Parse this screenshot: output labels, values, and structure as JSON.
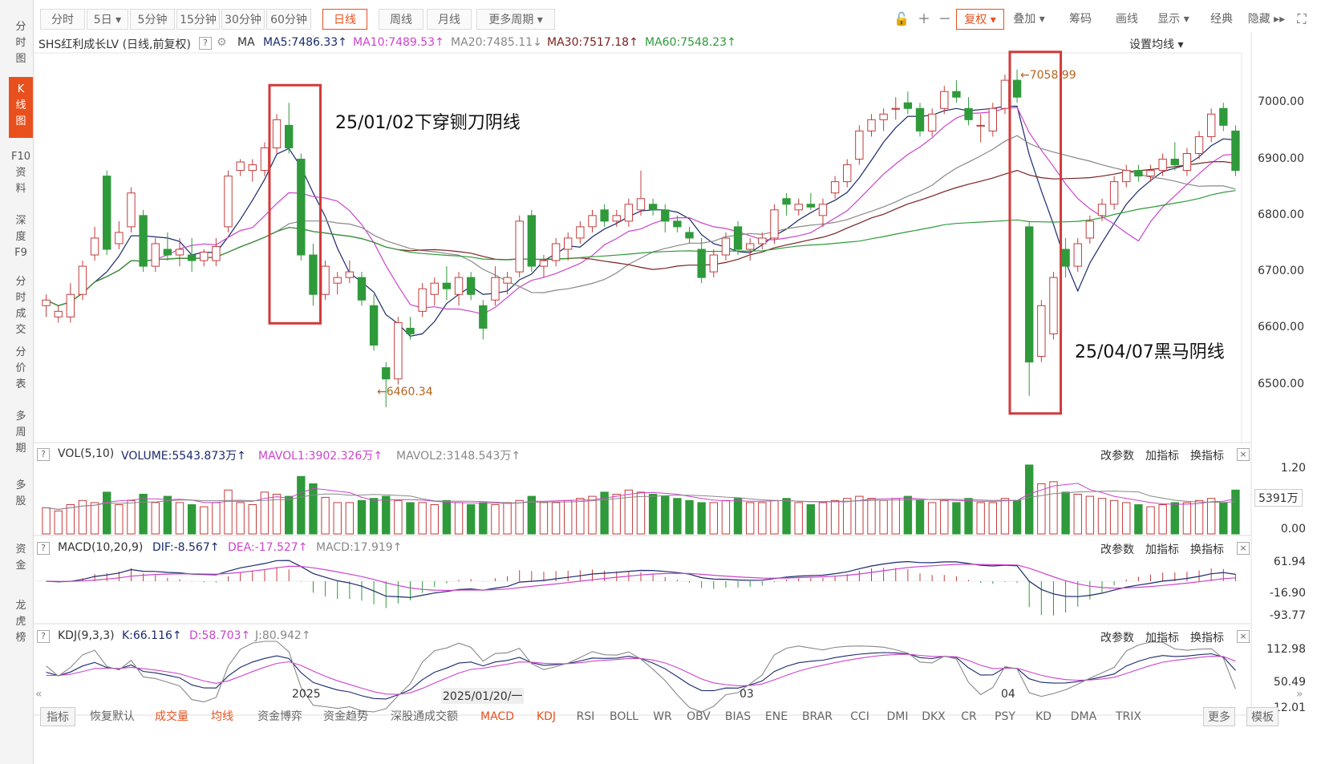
{
  "left_rail": [
    {
      "label": "分\n时\n图",
      "active": false
    },
    {
      "label": "K\n线\n图",
      "active": true
    },
    {
      "label": "F10\n资\n料",
      "active": false
    },
    {
      "label": "深\n度\nF9",
      "active": false
    },
    {
      "label": "分\n时\n成\n交",
      "active": false
    },
    {
      "label": "分\n价\n表",
      "active": false
    },
    {
      "label": "多\n周\n期",
      "active": false
    },
    {
      "label": "多\n股",
      "active": false
    },
    {
      "label": "资\n金",
      "active": false
    },
    {
      "label": "龙\n虎\n榜",
      "active": false
    }
  ],
  "toolbar": {
    "periods": [
      {
        "label": "分时",
        "active": false
      },
      {
        "label": "5日 ▾",
        "active": false
      },
      {
        "label": "5分钟",
        "active": false
      },
      {
        "label": "15分钟",
        "active": false
      },
      {
        "label": "30分钟",
        "active": false
      },
      {
        "label": "60分钟",
        "active": false
      },
      {
        "label": "日线",
        "active": true
      },
      {
        "label": "周线",
        "active": false
      },
      {
        "label": "月线",
        "active": false
      },
      {
        "label": "更多周期 ▾",
        "active": false
      }
    ],
    "right_items": [
      {
        "label": "复权 ▾",
        "accent": true
      },
      {
        "label": "叠加 ▾",
        "accent": false
      },
      {
        "label": "筹码",
        "accent": false
      },
      {
        "label": "画线",
        "accent": false
      },
      {
        "label": "显示 ▾",
        "accent": false
      },
      {
        "label": "经典",
        "accent": false
      },
      {
        "label": "隐藏 ▸▸",
        "accent": false
      }
    ],
    "icons": [
      "unlock-icon",
      "zoom-in-icon",
      "zoom-out-icon",
      "fullscreen-icon"
    ]
  },
  "ma_bar": {
    "title": "SHS红利成长LV (日线,前复权)",
    "help": "?",
    "ma_label": "MA",
    "ma5": "MA5:7486.33↑",
    "ma10": "MA10:7489.53↑",
    "ma20": "MA20:7485.11↓",
    "ma30": "MA30:7517.18↑",
    "ma60": "MA60:7548.23↑",
    "settings": "设置均线 ▾"
  },
  "price_axis": [
    "7000.00",
    "6900.00",
    "6800.00",
    "6700.00",
    "6600.00",
    "6500.00"
  ],
  "annotations": {
    "high_label": "←7058.99",
    "low_label": "←6460.34",
    "note1": "25/01/02下穿铡刀阴线",
    "note2": "25/04/07黑马阴线"
  },
  "volume_pane": {
    "help": "?",
    "name": "VOL(5,10)",
    "volume": "VOLUME:5543.873万↑",
    "mavol1": "MAVOL1:3902.326万↑",
    "mavol2": "MAVOL2:3148.543万↑",
    "actions": [
      "改参数",
      "加指标",
      "换指标"
    ],
    "close": "×",
    "axis": [
      "1.20",
      "5391万",
      "0.00"
    ]
  },
  "macd_pane": {
    "help": "?",
    "name": "MACD(10,20,9)",
    "dif": "DIF:-8.567↑",
    "dea": "DEA:-17.527↑",
    "macd": "MACD:17.919↑",
    "actions": [
      "改参数",
      "加指标",
      "换指标"
    ],
    "close": "×",
    "axis": [
      "61.94",
      "-16.90",
      "-93.77"
    ]
  },
  "kdj_pane": {
    "help": "?",
    "name": "KDJ(9,3,3)",
    "k": "K:66.116↑",
    "d": "D:58.703↑",
    "j": "J:80.942↑",
    "actions": [
      "改参数",
      "加指标",
      "换指标"
    ],
    "close": "×",
    "axis": [
      "112.98",
      "50.49",
      "-12.01"
    ]
  },
  "date_axis": {
    "labels": [
      "2025",
      "2025/01/20/一",
      "03",
      "04"
    ],
    "nav_left": "«",
    "nav_right": "»"
  },
  "bottom_tabs": [
    {
      "label": "指标",
      "style": "boxed"
    },
    {
      "label": "恢复默认",
      "style": "normal"
    },
    {
      "label": "成交量",
      "style": "red"
    },
    {
      "label": "均线",
      "style": "red"
    },
    {
      "label": "资金博弈",
      "style": "normal"
    },
    {
      "label": "资金趋势",
      "style": "normal"
    },
    {
      "label": "深股通成交额",
      "style": "normal"
    },
    {
      "label": "MACD",
      "style": "red"
    },
    {
      "label": "KDJ",
      "style": "red"
    },
    {
      "label": "RSI",
      "style": "normal"
    },
    {
      "label": "BOLL",
      "style": "normal"
    },
    {
      "label": "WR",
      "style": "normal"
    },
    {
      "label": "OBV",
      "style": "normal"
    },
    {
      "label": "BIAS",
      "style": "normal"
    },
    {
      "label": "ENE",
      "style": "normal"
    },
    {
      "label": "BRAR",
      "style": "normal"
    },
    {
      "label": "CCI",
      "style": "normal"
    },
    {
      "label": "DMI",
      "style": "normal"
    },
    {
      "label": "DKX",
      "style": "normal"
    },
    {
      "label": "CR",
      "style": "normal"
    },
    {
      "label": "PSY",
      "style": "normal"
    },
    {
      "label": "KD",
      "style": "normal"
    },
    {
      "label": "DMA",
      "style": "normal"
    },
    {
      "label": "TRIX",
      "style": "normal"
    },
    {
      "label": "更多",
      "style": "boxed"
    },
    {
      "label": "模板",
      "style": "boxed"
    }
  ],
  "colors": {
    "up": "#c43c3c",
    "down": "#2f9a3a",
    "ma5": "#1a2a6c",
    "ma10": "#cc44cc",
    "ma20": "#888888",
    "ma30": "#7a2020",
    "ma60": "#2f9a3a",
    "accent": "#e8501e",
    "annotation_box": "#d23a3a",
    "price_label": "#b5651d"
  },
  "chart_data": {
    "type": "candlestick",
    "ylim": [
      6400,
      7080
    ],
    "highlights": [
      {
        "from_index": 19,
        "to_index": 22
      },
      {
        "from_index": 80,
        "to_index": 83
      }
    ],
    "candles": [
      {
        "o": 6640,
        "h": 6660,
        "l": 6620,
        "c": 6650,
        "v": 25
      },
      {
        "o": 6620,
        "h": 6640,
        "l": 6610,
        "c": 6630,
        "v": 22
      },
      {
        "o": 6620,
        "h": 6680,
        "l": 6610,
        "c": 6660,
        "v": 28
      },
      {
        "o": 6660,
        "h": 6720,
        "l": 6650,
        "c": 6710,
        "v": 32
      },
      {
        "o": 6730,
        "h": 6780,
        "l": 6720,
        "c": 6760,
        "v": 30
      },
      {
        "o": 6870,
        "h": 6880,
        "l": 6730,
        "c": 6740,
        "v": 40
      },
      {
        "o": 6750,
        "h": 6790,
        "l": 6740,
        "c": 6770,
        "v": 28
      },
      {
        "o": 6780,
        "h": 6850,
        "l": 6770,
        "c": 6840,
        "v": 32
      },
      {
        "o": 6800,
        "h": 6810,
        "l": 6700,
        "c": 6710,
        "v": 38
      },
      {
        "o": 6710,
        "h": 6760,
        "l": 6700,
        "c": 6750,
        "v": 30
      },
      {
        "o": 6740,
        "h": 6770,
        "l": 6720,
        "c": 6730,
        "v": 36
      },
      {
        "o": 6730,
        "h": 6760,
        "l": 6710,
        "c": 6740,
        "v": 30
      },
      {
        "o": 6730,
        "h": 6760,
        "l": 6700,
        "c": 6720,
        "v": 28
      },
      {
        "o": 6720,
        "h": 6740,
        "l": 6710,
        "c": 6735,
        "v": 26
      },
      {
        "o": 6720,
        "h": 6760,
        "l": 6710,
        "c": 6745,
        "v": 30
      },
      {
        "o": 6780,
        "h": 6880,
        "l": 6770,
        "c": 6870,
        "v": 42
      },
      {
        "o": 6880,
        "h": 6900,
        "l": 6870,
        "c": 6895,
        "v": 30
      },
      {
        "o": 6880,
        "h": 6900,
        "l": 6860,
        "c": 6890,
        "v": 28
      },
      {
        "o": 6880,
        "h": 6930,
        "l": 6870,
        "c": 6920,
        "v": 40
      },
      {
        "o": 6920,
        "h": 6980,
        "l": 6910,
        "c": 6970,
        "v": 38
      },
      {
        "o": 6960,
        "h": 7000,
        "l": 6910,
        "c": 6920,
        "v": 36
      },
      {
        "o": 6900,
        "h": 6910,
        "l": 6720,
        "c": 6730,
        "v": 55
      },
      {
        "o": 6730,
        "h": 6750,
        "l": 6640,
        "c": 6660,
        "v": 48
      },
      {
        "o": 6660,
        "h": 6720,
        "l": 6650,
        "c": 6710,
        "v": 35
      },
      {
        "o": 6680,
        "h": 6700,
        "l": 6660,
        "c": 6690,
        "v": 30
      },
      {
        "o": 6690,
        "h": 6720,
        "l": 6680,
        "c": 6700,
        "v": 30
      },
      {
        "o": 6690,
        "h": 6700,
        "l": 6640,
        "c": 6650,
        "v": 32
      },
      {
        "o": 6640,
        "h": 6660,
        "l": 6560,
        "c": 6570,
        "v": 34
      },
      {
        "o": 6530,
        "h": 6540,
        "l": 6460,
        "c": 6510,
        "v": 36
      },
      {
        "o": 6510,
        "h": 6620,
        "l": 6500,
        "c": 6610,
        "v": 32
      },
      {
        "o": 6600,
        "h": 6620,
        "l": 6580,
        "c": 6590,
        "v": 30
      },
      {
        "o": 6630,
        "h": 6680,
        "l": 6620,
        "c": 6670,
        "v": 30
      },
      {
        "o": 6660,
        "h": 6690,
        "l": 6640,
        "c": 6680,
        "v": 28
      },
      {
        "o": 6680,
        "h": 6710,
        "l": 6650,
        "c": 6670,
        "v": 32
      },
      {
        "o": 6660,
        "h": 6700,
        "l": 6640,
        "c": 6690,
        "v": 30
      },
      {
        "o": 6690,
        "h": 6700,
        "l": 6650,
        "c": 6660,
        "v": 28
      },
      {
        "o": 6640,
        "h": 6650,
        "l": 6580,
        "c": 6600,
        "v": 30
      },
      {
        "o": 6650,
        "h": 6710,
        "l": 6640,
        "c": 6690,
        "v": 28
      },
      {
        "o": 6680,
        "h": 6700,
        "l": 6660,
        "c": 6690,
        "v": 30
      },
      {
        "o": 6700,
        "h": 6800,
        "l": 6690,
        "c": 6790,
        "v": 32
      },
      {
        "o": 6800,
        "h": 6810,
        "l": 6700,
        "c": 6710,
        "v": 36
      },
      {
        "o": 6710,
        "h": 6730,
        "l": 6690,
        "c": 6720,
        "v": 30
      },
      {
        "o": 6720,
        "h": 6760,
        "l": 6710,
        "c": 6750,
        "v": 30
      },
      {
        "o": 6740,
        "h": 6770,
        "l": 6720,
        "c": 6760,
        "v": 32
      },
      {
        "o": 6760,
        "h": 6790,
        "l": 6750,
        "c": 6780,
        "v": 34
      },
      {
        "o": 6780,
        "h": 6810,
        "l": 6770,
        "c": 6800,
        "v": 36
      },
      {
        "o": 6810,
        "h": 6820,
        "l": 6780,
        "c": 6790,
        "v": 40
      },
      {
        "o": 6790,
        "h": 6810,
        "l": 6780,
        "c": 6800,
        "v": 38
      },
      {
        "o": 6790,
        "h": 6830,
        "l": 6780,
        "c": 6820,
        "v": 42
      },
      {
        "o": 6810,
        "h": 6880,
        "l": 6800,
        "c": 6830,
        "v": 40
      },
      {
        "o": 6820,
        "h": 6830,
        "l": 6800,
        "c": 6810,
        "v": 38
      },
      {
        "o": 6810,
        "h": 6820,
        "l": 6770,
        "c": 6790,
        "v": 36
      },
      {
        "o": 6790,
        "h": 6800,
        "l": 6770,
        "c": 6780,
        "v": 34
      },
      {
        "o": 6770,
        "h": 6780,
        "l": 6750,
        "c": 6760,
        "v": 32
      },
      {
        "o": 6740,
        "h": 6760,
        "l": 6680,
        "c": 6690,
        "v": 30
      },
      {
        "o": 6700,
        "h": 6740,
        "l": 6690,
        "c": 6730,
        "v": 30
      },
      {
        "o": 6730,
        "h": 6770,
        "l": 6720,
        "c": 6760,
        "v": 32
      },
      {
        "o": 6780,
        "h": 6790,
        "l": 6730,
        "c": 6740,
        "v": 34
      },
      {
        "o": 6740,
        "h": 6760,
        "l": 6720,
        "c": 6750,
        "v": 30
      },
      {
        "o": 6750,
        "h": 6770,
        "l": 6740,
        "c": 6760,
        "v": 30
      },
      {
        "o": 6760,
        "h": 6820,
        "l": 6750,
        "c": 6810,
        "v": 32
      },
      {
        "o": 6830,
        "h": 6840,
        "l": 6800,
        "c": 6820,
        "v": 34
      },
      {
        "o": 6810,
        "h": 6830,
        "l": 6800,
        "c": 6820,
        "v": 30
      },
      {
        "o": 6820,
        "h": 6840,
        "l": 6810,
        "c": 6815,
        "v": 28
      },
      {
        "o": 6800,
        "h": 6830,
        "l": 6780,
        "c": 6820,
        "v": 30
      },
      {
        "o": 6840,
        "h": 6870,
        "l": 6830,
        "c": 6860,
        "v": 32
      },
      {
        "o": 6860,
        "h": 6900,
        "l": 6850,
        "c": 6890,
        "v": 34
      },
      {
        "o": 6900,
        "h": 6960,
        "l": 6890,
        "c": 6950,
        "v": 36
      },
      {
        "o": 6950,
        "h": 6980,
        "l": 6940,
        "c": 6970,
        "v": 34
      },
      {
        "o": 6970,
        "h": 6990,
        "l": 6950,
        "c": 6980,
        "v": 32
      },
      {
        "o": 6990,
        "h": 7010,
        "l": 6970,
        "c": 6990,
        "v": 34
      },
      {
        "o": 7000,
        "h": 7020,
        "l": 6980,
        "c": 6990,
        "v": 36
      },
      {
        "o": 6990,
        "h": 7000,
        "l": 6940,
        "c": 6950,
        "v": 32
      },
      {
        "o": 6950,
        "h": 6990,
        "l": 6940,
        "c": 6980,
        "v": 30
      },
      {
        "o": 6990,
        "h": 7030,
        "l": 6980,
        "c": 7020,
        "v": 32
      },
      {
        "o": 7020,
        "h": 7040,
        "l": 7000,
        "c": 7010,
        "v": 30
      },
      {
        "o": 6990,
        "h": 7010,
        "l": 6960,
        "c": 6970,
        "v": 34
      },
      {
        "o": 6960,
        "h": 6980,
        "l": 6930,
        "c": 6960,
        "v": 30
      },
      {
        "o": 6950,
        "h": 7000,
        "l": 6940,
        "c": 6990,
        "v": 30
      },
      {
        "o": 6990,
        "h": 7050,
        "l": 6980,
        "c": 7040,
        "v": 34
      },
      {
        "o": 7040,
        "h": 7059,
        "l": 7000,
        "c": 7010,
        "v": 32
      },
      {
        "o": 6780,
        "h": 6790,
        "l": 6480,
        "c": 6540,
        "v": 66
      },
      {
        "o": 6550,
        "h": 6650,
        "l": 6540,
        "c": 6640,
        "v": 48
      },
      {
        "o": 6590,
        "h": 6700,
        "l": 6580,
        "c": 6690,
        "v": 50
      },
      {
        "o": 6740,
        "h": 6760,
        "l": 6690,
        "c": 6710,
        "v": 40
      },
      {
        "o": 6710,
        "h": 6760,
        "l": 6700,
        "c": 6750,
        "v": 38
      },
      {
        "o": 6760,
        "h": 6800,
        "l": 6750,
        "c": 6790,
        "v": 36
      },
      {
        "o": 6800,
        "h": 6830,
        "l": 6790,
        "c": 6820,
        "v": 34
      },
      {
        "o": 6820,
        "h": 6870,
        "l": 6810,
        "c": 6860,
        "v": 32
      },
      {
        "o": 6860,
        "h": 6890,
        "l": 6850,
        "c": 6880,
        "v": 30
      },
      {
        "o": 6880,
        "h": 6890,
        "l": 6860,
        "c": 6870,
        "v": 28
      },
      {
        "o": 6870,
        "h": 6890,
        "l": 6860,
        "c": 6880,
        "v": 26
      },
      {
        "o": 6880,
        "h": 6910,
        "l": 6870,
        "c": 6900,
        "v": 28
      },
      {
        "o": 6900,
        "h": 6930,
        "l": 6880,
        "c": 6890,
        "v": 30
      },
      {
        "o": 6880,
        "h": 6920,
        "l": 6870,
        "c": 6910,
        "v": 30
      },
      {
        "o": 6910,
        "h": 6950,
        "l": 6900,
        "c": 6940,
        "v": 32
      },
      {
        "o": 6940,
        "h": 6990,
        "l": 6930,
        "c": 6980,
        "v": 34
      },
      {
        "o": 6990,
        "h": 7000,
        "l": 6950,
        "c": 6960,
        "v": 30
      },
      {
        "o": 6950,
        "h": 6960,
        "l": 6870,
        "c": 6880,
        "v": 42
      }
    ]
  }
}
